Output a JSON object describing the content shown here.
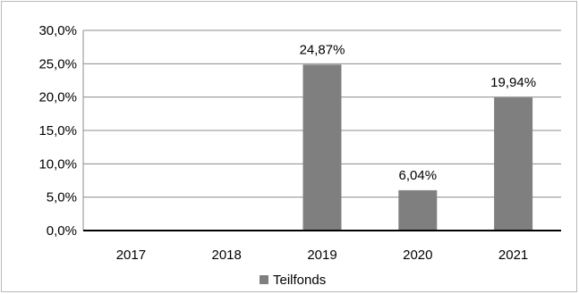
{
  "chart_data": {
    "type": "bar",
    "title": "",
    "xlabel": "",
    "ylabel": "",
    "categories": [
      "2017",
      "2018",
      "2019",
      "2020",
      "2021"
    ],
    "series": [
      {
        "name": "Teilfonds",
        "values": [
          0,
          0,
          24.87,
          6.04,
          19.94
        ],
        "labels": [
          "",
          "",
          "24,87%",
          "6,04%",
          "19,94%"
        ],
        "color": "#7f7f7f"
      }
    ],
    "ylim": [
      0,
      30
    ],
    "yticks": [
      0,
      5,
      10,
      15,
      20,
      25,
      30
    ],
    "ytick_labels": [
      "0,0%",
      "5,0%",
      "10,0%",
      "15,0%",
      "20,0%",
      "25,0%",
      "30,0%"
    ],
    "grid": true,
    "legend": "bottom"
  }
}
